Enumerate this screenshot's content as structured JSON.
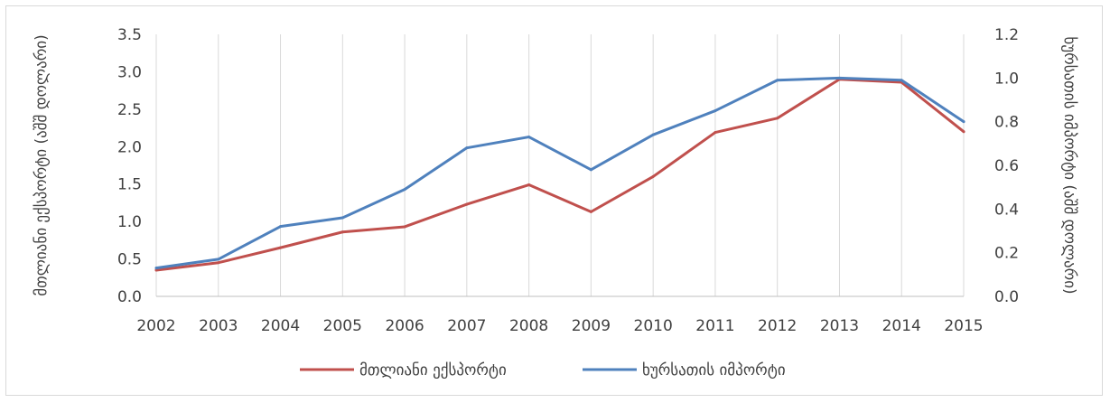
{
  "chart_data": {
    "type": "line",
    "x": [
      "2002",
      "2003",
      "2004",
      "2005",
      "2006",
      "2007",
      "2008",
      "2009",
      "2010",
      "2011",
      "2012",
      "2013",
      "2014",
      "2015"
    ],
    "series": [
      {
        "name": "მთლიანი ექსპორტი",
        "axis": "left",
        "color": "#c0504d",
        "values": [
          0.35,
          0.45,
          0.65,
          0.86,
          0.93,
          1.23,
          1.49,
          1.13,
          1.6,
          2.19,
          2.38,
          2.9,
          2.86,
          2.2
        ]
      },
      {
        "name": "ხურსათის იმპორტი",
        "axis": "right",
        "color": "#4f81bd",
        "values": [
          0.13,
          0.17,
          0.32,
          0.36,
          0.49,
          0.68,
          0.73,
          0.58,
          0.74,
          0.85,
          0.99,
          1.0,
          0.99,
          0.8
        ]
      }
    ],
    "ylabel_left": "მთლიანი ექსპორტი (აშშ დოლარი)",
    "ylabel_right": "ხურსათის იმპორტი (აშშ დოლარი)",
    "ylim_left": [
      0,
      3.5
    ],
    "yticks_left": [
      "0.0",
      "0.5",
      "1.0",
      "1.5",
      "2.0",
      "2.5",
      "3.0",
      "3.5"
    ],
    "ylim_right": [
      0,
      1.2
    ],
    "yticks_right": [
      "0.0",
      "0.2",
      "0.4",
      "0.6",
      "0.8",
      "1.0",
      "1.2"
    ],
    "grid": "vertical",
    "legend": "bottom"
  }
}
